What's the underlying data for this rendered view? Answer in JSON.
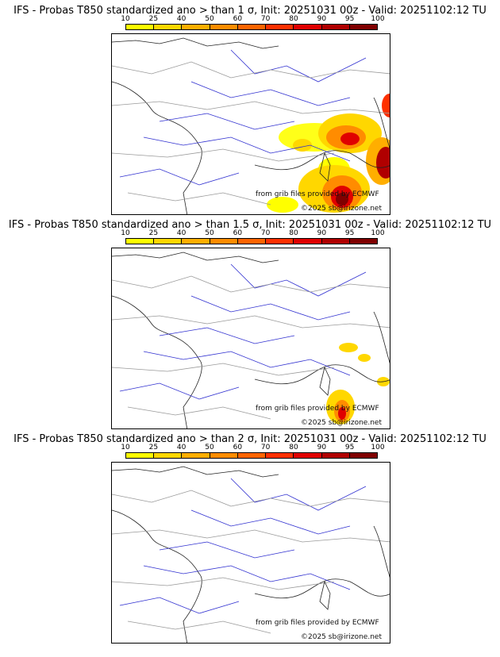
{
  "colorbar": {
    "ticks": [
      "10",
      "25",
      "40",
      "50",
      "60",
      "70",
      "80",
      "90",
      "95",
      "100"
    ],
    "colors": [
      "#ffff00",
      "#ffd700",
      "#ffae00",
      "#ff8c00",
      "#ff6400",
      "#ff3000",
      "#e00000",
      "#b00000",
      "#800000"
    ]
  },
  "panels": [
    {
      "title": "IFS - Probas T850  standardized ano > than 1 σ, Init: 20251031 00z - Valid: 20251102:12 TU"
    },
    {
      "title": "IFS - Probas T850  standardized ano > than 1.5 σ, Init: 20251031 00z - Valid: 20251102:12 TU"
    },
    {
      "title": "IFS - Probas T850  standardized ano > than 2 σ, Init: 20251031 00z - Valid: 20251102:12 TU"
    }
  ],
  "credits": {
    "source": "from grib files provided by ECMWF",
    "copyright": "©2025 sb@irizone.net"
  }
}
